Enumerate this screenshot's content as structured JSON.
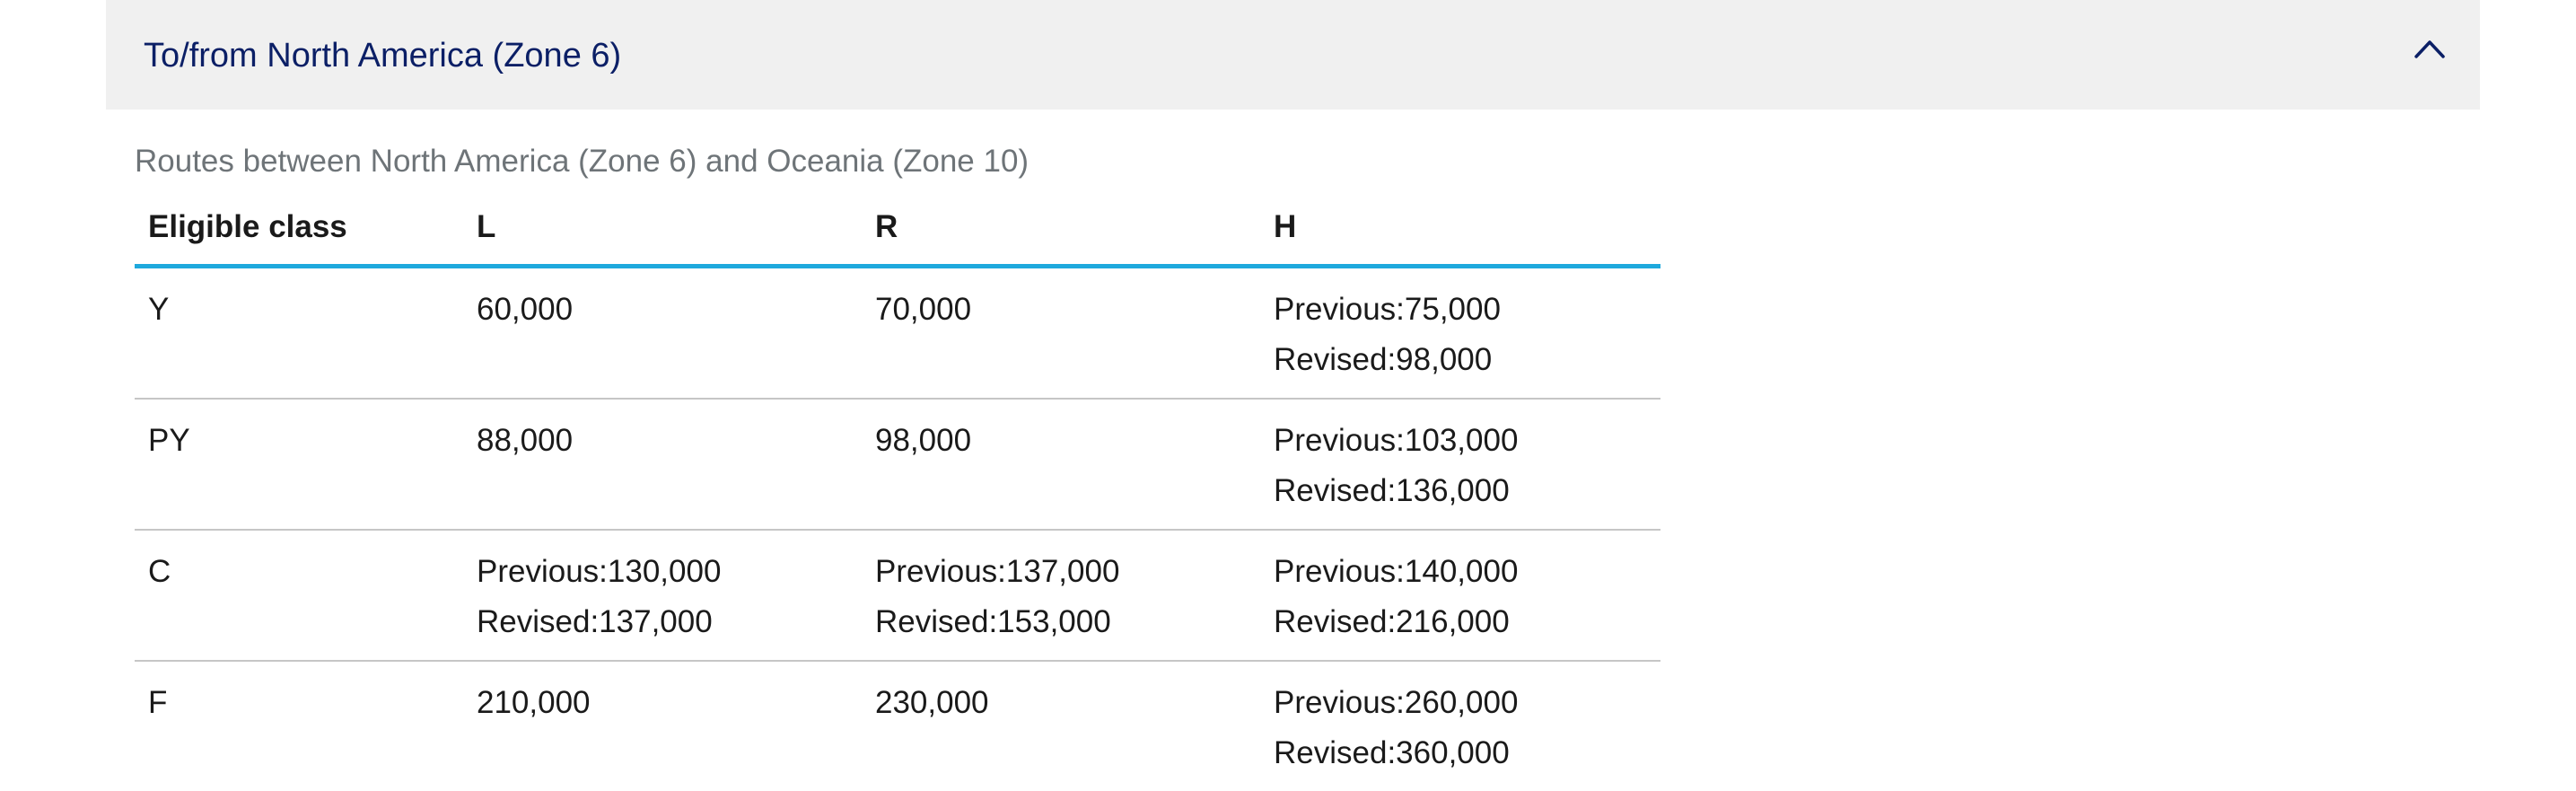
{
  "accordion": {
    "title": "To/from North America (Zone 6)",
    "expanded_icon": "chevron-up-icon"
  },
  "subtitle": "Routes between North America (Zone 6) and Oceania (Zone 10)",
  "table": {
    "headers": [
      "Eligible class",
      "L",
      "R",
      "H"
    ],
    "rows": [
      {
        "class": "Y",
        "cells": [
          [
            "60,000"
          ],
          [
            "70,000"
          ],
          [
            "Previous:75,000",
            "Revised:98,000"
          ]
        ]
      },
      {
        "class": "PY",
        "cells": [
          [
            "88,000"
          ],
          [
            "98,000"
          ],
          [
            "Previous:103,000",
            "Revised:136,000"
          ]
        ]
      },
      {
        "class": "C",
        "cells": [
          [
            "Previous:130,000",
            "Revised:137,000"
          ],
          [
            "Previous:137,000",
            "Revised:153,000"
          ],
          [
            "Previous:140,000",
            "Revised:216,000"
          ]
        ]
      },
      {
        "class": "F",
        "cells": [
          [
            "210,000"
          ],
          [
            "230,000"
          ],
          [
            "Previous:260,000",
            "Revised:360,000"
          ]
        ]
      }
    ]
  },
  "colors": {
    "title": "#0b1f66",
    "header_rule": "#1ea9dd",
    "row_divider": "#c6c6c6",
    "accordion_bg": "#f0f0f0",
    "subtitle": "#6e7478"
  }
}
